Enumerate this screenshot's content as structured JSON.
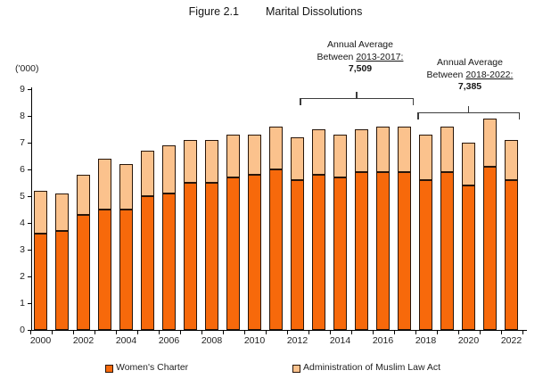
{
  "title": {
    "figure_label": "Figure 2.1",
    "text": "Marital Dissolutions"
  },
  "chart_data": {
    "type": "bar",
    "stacked": true,
    "title": "Figure 2.1 Marital Dissolutions",
    "xlabel": "",
    "ylabel": "('000)",
    "ylim": [
      0,
      9
    ],
    "y_ticks": [
      0,
      1,
      2,
      3,
      4,
      5,
      6,
      7,
      8,
      9
    ],
    "grid": false,
    "legend_position": "bottom",
    "x_label_every": 2,
    "categories": [
      "2000",
      "2001",
      "2002",
      "2003",
      "2004",
      "2005",
      "2006",
      "2007",
      "2008",
      "2009",
      "2010",
      "2011",
      "2012",
      "2013",
      "2014",
      "2015",
      "2016",
      "2017",
      "2018",
      "2019",
      "2020",
      "2021",
      "2022"
    ],
    "series": [
      {
        "name": "Women's Charter",
        "color": "#F7690B",
        "values": [
          3.6,
          3.7,
          4.3,
          4.5,
          4.5,
          5.0,
          5.1,
          5.5,
          5.5,
          5.7,
          5.8,
          6.0,
          5.6,
          5.8,
          5.7,
          5.9,
          5.9,
          5.9,
          5.6,
          5.9,
          5.4,
          6.1,
          5.6
        ]
      },
      {
        "name": "Administration of Muslim Law Act",
        "color": "#FBC28D",
        "values": [
          1.6,
          1.4,
          1.5,
          1.9,
          1.7,
          1.7,
          1.8,
          1.6,
          1.6,
          1.6,
          1.5,
          1.6,
          1.6,
          1.7,
          1.6,
          1.6,
          1.7,
          1.7,
          1.7,
          1.7,
          1.6,
          1.8,
          1.5
        ]
      }
    ],
    "annotations": [
      {
        "line1": "Annual Average",
        "line2_prefix": "Between ",
        "line2_range": "2013-2017:",
        "value": "7,509"
      },
      {
        "line1": "Annual Average",
        "line2_prefix": "Between ",
        "line2_range": "2018-2022:",
        "value": "7,385"
      }
    ]
  }
}
